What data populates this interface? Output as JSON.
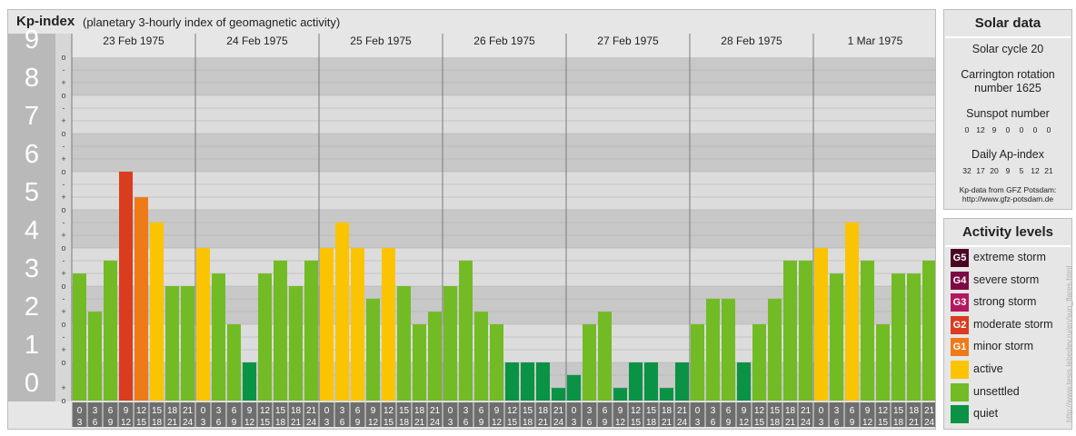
{
  "header": {
    "title": "Kp-index",
    "subtitle": "(planetary 3-hourly index of geomagnetic activity)"
  },
  "colors": {
    "quiet": "#0a9345",
    "unsettled": "#72bb25",
    "active": "#fbc400",
    "g1": "#ee7a18",
    "g2": "#d93c1e",
    "g3": "#b5175e",
    "g4": "#7c0c43",
    "g5": "#4a0424"
  },
  "chart_data": {
    "type": "bar",
    "title": "Kp-index",
    "subtitle": "(planetary 3-hourly index of geomagnetic activity)",
    "ylim": [
      0,
      9
    ],
    "y_ticks": [
      "0",
      "1",
      "2",
      "3",
      "4",
      "5",
      "6",
      "7",
      "8",
      "9"
    ],
    "sub_ticks": [
      "+",
      "o",
      "-"
    ],
    "days": [
      "23 Feb 1975",
      "24 Feb 1975",
      "25 Feb 1975",
      "26 Feb 1975",
      "27 Feb 1975",
      "28 Feb 1975",
      "1 Mar 1975"
    ],
    "interval_start": [
      "0",
      "3",
      "6",
      "9",
      "12",
      "15",
      "18",
      "21"
    ],
    "interval_end": [
      "3",
      "6",
      "9",
      "12",
      "15",
      "18",
      "21",
      "24"
    ],
    "values": [
      3.33,
      2.33,
      3.67,
      6.0,
      5.33,
      4.67,
      3.0,
      3.0,
      4.0,
      3.33,
      2.0,
      1.0,
      3.33,
      3.67,
      3.0,
      3.67,
      4.0,
      4.67,
      4.0,
      2.67,
      4.0,
      3.0,
      2.0,
      2.33,
      3.0,
      3.67,
      2.33,
      2.0,
      1.0,
      1.0,
      1.0,
      0.33,
      0.67,
      2.0,
      2.33,
      0.33,
      1.0,
      1.0,
      0.33,
      1.0,
      2.0,
      2.67,
      2.67,
      1.0,
      2.0,
      2.67,
      3.67,
      3.67,
      4.0,
      3.33,
      4.67,
      3.67,
      2.0,
      3.33,
      3.33,
      3.67
    ]
  },
  "solar": {
    "title": "Solar data",
    "cycle": "Solar cycle 20",
    "carrington_line1": "Carrington rotation",
    "carrington_line2": "number 1625",
    "sunspot_title": "Sunspot number",
    "sunspot_values": [
      "0",
      "12",
      "9",
      "0",
      "0",
      "0",
      "0"
    ],
    "ap_title": "Daily Ap-index",
    "ap_values": [
      "32",
      "17",
      "20",
      "9",
      "5",
      "12",
      "21"
    ],
    "credit_line1": "Kp-data from GFZ Potsdam:",
    "credit_line2": "http://www.gfz-potsdam.de"
  },
  "levels": {
    "title": "Activity levels",
    "items": [
      {
        "code": "G5",
        "label": "extreme storm",
        "color": "#4a0424"
      },
      {
        "code": "G4",
        "label": "severe storm",
        "color": "#7c0c43"
      },
      {
        "code": "G3",
        "label": "strong storm",
        "color": "#b5175e"
      },
      {
        "code": "G2",
        "label": "moderate storm",
        "color": "#d93c1e"
      },
      {
        "code": "G1",
        "label": "minor storm",
        "color": "#ee7a18"
      },
      {
        "code": "",
        "label": "active",
        "color": "#fbc400"
      },
      {
        "code": "",
        "label": "unsettled",
        "color": "#72bb25"
      },
      {
        "code": "",
        "label": "quiet",
        "color": "#0a9345"
      }
    ]
  },
  "footer": {
    "url": "http://www.tesis.lebedev.ru/en/sun_flares.html"
  }
}
